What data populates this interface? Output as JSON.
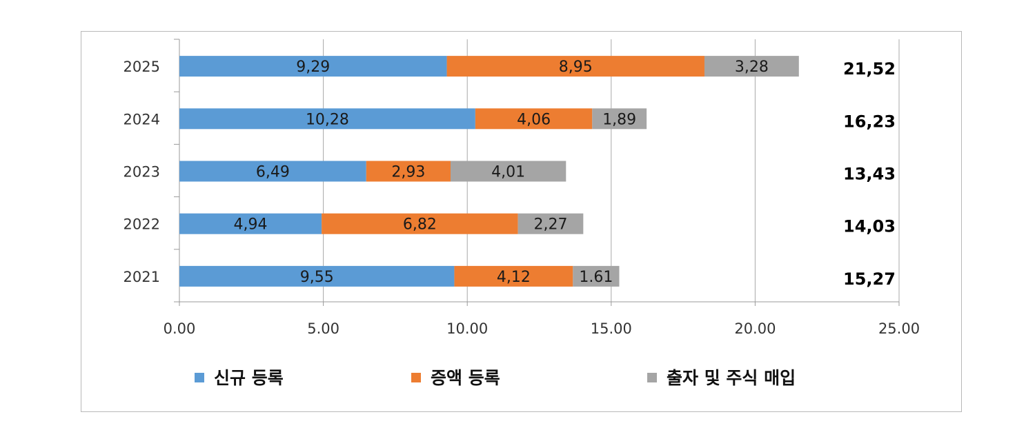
{
  "chart_data": {
    "type": "bar",
    "orientation": "horizontal",
    "stacked": true,
    "title": "",
    "xlabel": "",
    "ylabel": "",
    "categories": [
      "2025",
      "2024",
      "2023",
      "2022",
      "2021"
    ],
    "series": [
      {
        "name": "신규 등록",
        "color": "#5b9bd5",
        "values": [
          9.29,
          10.28,
          6.49,
          4.94,
          9.55
        ],
        "labels": [
          "9,29",
          "10,28",
          "6,49",
          "4,94",
          "9,55"
        ]
      },
      {
        "name": "증액 등록",
        "color": "#ed7d31",
        "values": [
          8.95,
          4.06,
          2.93,
          6.82,
          4.12
        ],
        "labels": [
          "8,95",
          "4,06",
          "2,93",
          "6,82",
          "4,12"
        ]
      },
      {
        "name": "출자 및 주식 매입",
        "color": "#a5a5a5",
        "values": [
          3.28,
          1.89,
          4.01,
          2.27,
          1.61
        ],
        "labels": [
          "3,28",
          "1,89",
          "4,01",
          "2,27",
          "1.61"
        ]
      }
    ],
    "totals": [
      "21,52",
      "16,23",
      "13,43",
      "14,03",
      "15,27"
    ],
    "xlim": [
      0,
      25
    ],
    "xticks": [
      "0.00",
      "5.00",
      "10.00",
      "15.00",
      "20.00",
      "25.00"
    ],
    "grid": "vertical",
    "legend": "bottom"
  }
}
